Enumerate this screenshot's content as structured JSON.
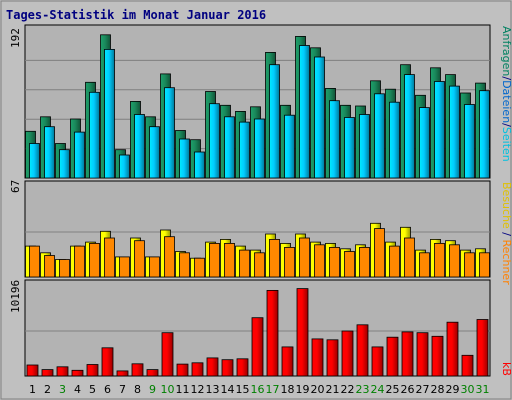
{
  "chart_data": {
    "type": "bar",
    "title": "Tages-Statistik im Monat Januar 2016",
    "categories": [
      "1",
      "2",
      "3",
      "4",
      "5",
      "6",
      "7",
      "8",
      "9",
      "10",
      "11",
      "12",
      "13",
      "14",
      "15",
      "16",
      "17",
      "18",
      "19",
      "20",
      "21",
      "22",
      "23",
      "24",
      "25",
      "26",
      "27",
      "28",
      "29",
      "30",
      "31"
    ],
    "weekend_days": [
      "3",
      "9",
      "10",
      "16",
      "17",
      "23",
      "24",
      "30",
      "31"
    ],
    "panels": [
      {
        "id": "top",
        "max_label": "192",
        "ylim": [
          0,
          192
        ],
        "side_labels": [
          {
            "text": "Anfragen",
            "color": "#008060"
          },
          {
            "text": "/",
            "color": "#000080"
          },
          {
            "text": "Dateien",
            "color": "#0066cc"
          },
          {
            "text": "/",
            "color": "#000080"
          },
          {
            "text": "Seiten",
            "color": "#00c0e0"
          }
        ],
        "series": [
          {
            "values": [
              61,
              80,
              45,
              77,
              125,
              187,
              37,
              100,
              80,
              136,
              62,
              50,
              113,
              95,
              87,
              93,
              164,
              95,
              185,
              170,
              117,
              95,
              94,
              127,
              116,
              148,
              108,
              144,
              135,
              111,
              124
            ],
            "color": "#1a8a5c"
          },
          {
            "values": [
              45,
              67,
              37,
              60,
              112,
              168,
              30,
              83,
              67,
              118,
              51,
              34,
              97,
              80,
              73,
              77,
              148,
              82,
              173,
              158,
              101,
              79,
              83,
              110,
              99,
              135,
              92,
              126,
              120,
              96,
              114
            ],
            "color": "#00ccff"
          }
        ]
      },
      {
        "id": "mid",
        "max_label": "67",
        "ylim": [
          0,
          67
        ],
        "side_labels": [
          {
            "text": "Besuche",
            "color": "#e0c000"
          },
          {
            "text": " / ",
            "color": "#000080"
          },
          {
            "text": "Rechner",
            "color": "#ff8000"
          }
        ],
        "series": [
          {
            "values": [
              23,
              18,
              13,
              23,
              26,
              34,
              15,
              29,
              15,
              35,
              19,
              14,
              26,
              28,
              23,
              20,
              32,
              25,
              32,
              26,
              25,
              21,
              24,
              40,
              26,
              37,
              20,
              28,
              27,
              20,
              21
            ],
            "color": "#ffff00"
          },
          {
            "values": [
              23,
              16,
              13,
              23,
              25,
              29,
              15,
              27,
              15,
              30,
              18,
              14,
              25,
              25,
              20,
              18,
              28,
              22,
              29,
              24,
              22,
              19,
              22,
              36,
              23,
              29,
              18,
              25,
              24,
              18,
              18
            ]
          }
        ]
      },
      {
        "id": "bot",
        "max_label": "10196",
        "ylim": [
          0,
          10196
        ],
        "side_labels": [
          {
            "text": "kB",
            "color": "#ff0000"
          }
        ],
        "series": [
          {
            "values": [
              1250,
              720,
              1040,
              650,
              1300,
              3200,
              580,
              1380,
              720,
              4900,
              1350,
              1500,
              2050,
              1850,
              1950,
              6600,
              9700,
              3300,
              9900,
              4200,
              4100,
              5100,
              5800,
              3300,
              4400,
              5000,
              4900,
              4500,
              6100,
              2350,
              6400
            ],
            "color": "#ff0000"
          }
        ]
      }
    ]
  }
}
